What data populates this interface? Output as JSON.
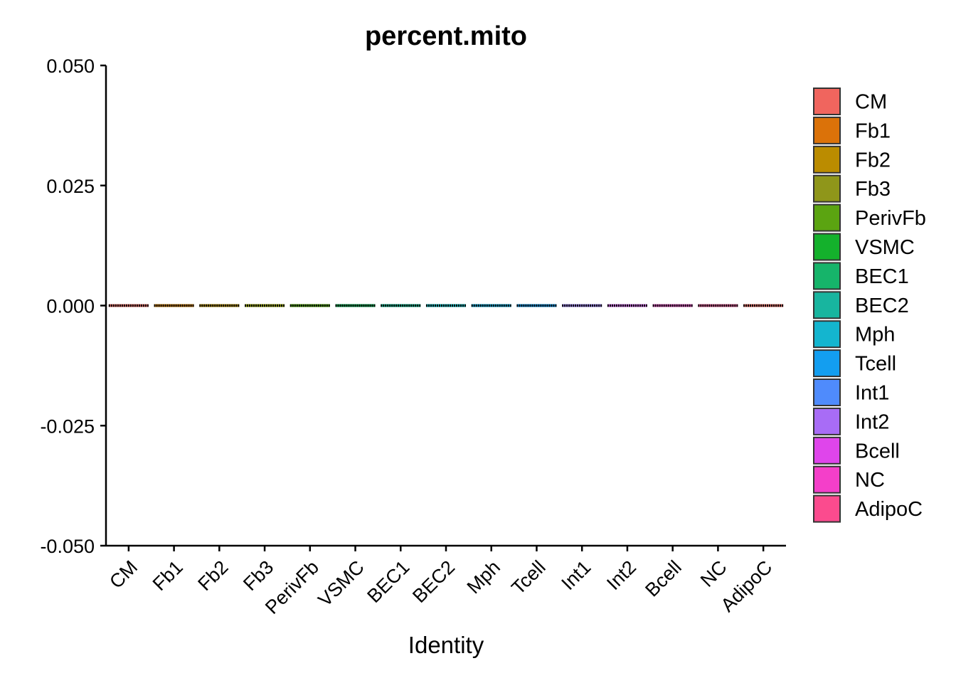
{
  "chart_data": {
    "type": "violin",
    "title": "percent.mito",
    "xlabel": "Identity",
    "ylabel": "",
    "ylim": [
      -0.05,
      0.05
    ],
    "y_ticks": [
      "-0.050",
      "-0.025",
      "0.000",
      "0.025",
      "0.050"
    ],
    "y_tick_values": [
      -0.05,
      -0.025,
      0,
      0.025,
      0.05
    ],
    "categories": [
      "CM",
      "Fb1",
      "Fb2",
      "Fb3",
      "PerivFb",
      "VSMC",
      "BEC1",
      "BEC2",
      "Mph",
      "Tcell",
      "Int1",
      "Int2",
      "Bcell",
      "NC",
      "AdipoC"
    ],
    "values": [
      0,
      0,
      0,
      0,
      0,
      0,
      0,
      0,
      0,
      0,
      0,
      0,
      0,
      0,
      0
    ],
    "colors": [
      "#F8766D",
      "#E38900",
      "#C49A00",
      "#99A800",
      "#53B400",
      "#00BC56",
      "#00C094",
      "#00BFC4",
      "#00B6EB",
      "#06A4FF",
      "#A58AFF",
      "#DF70F8",
      "#FB61D7",
      "#FF66A8",
      "#F8766D"
    ],
    "legend": {
      "position": "right",
      "entries": [
        "CM",
        "Fb1",
        "Fb2",
        "Fb3",
        "PerivFb",
        "VSMC",
        "BEC1",
        "BEC2",
        "Mph",
        "Tcell",
        "Int1",
        "Int2",
        "Bcell",
        "NC",
        "AdipoC"
      ],
      "colors": [
        "#F0655E",
        "#DB7209",
        "#BB8C00",
        "#8F961A",
        "#5BA411",
        "#14B12C",
        "#16B46A",
        "#18B59F",
        "#14B5CF",
        "#139EF0",
        "#4F8BFC",
        "#A86CF6",
        "#DF45EB",
        "#F43FC9",
        "#FB4B8E"
      ]
    },
    "grid": false
  }
}
